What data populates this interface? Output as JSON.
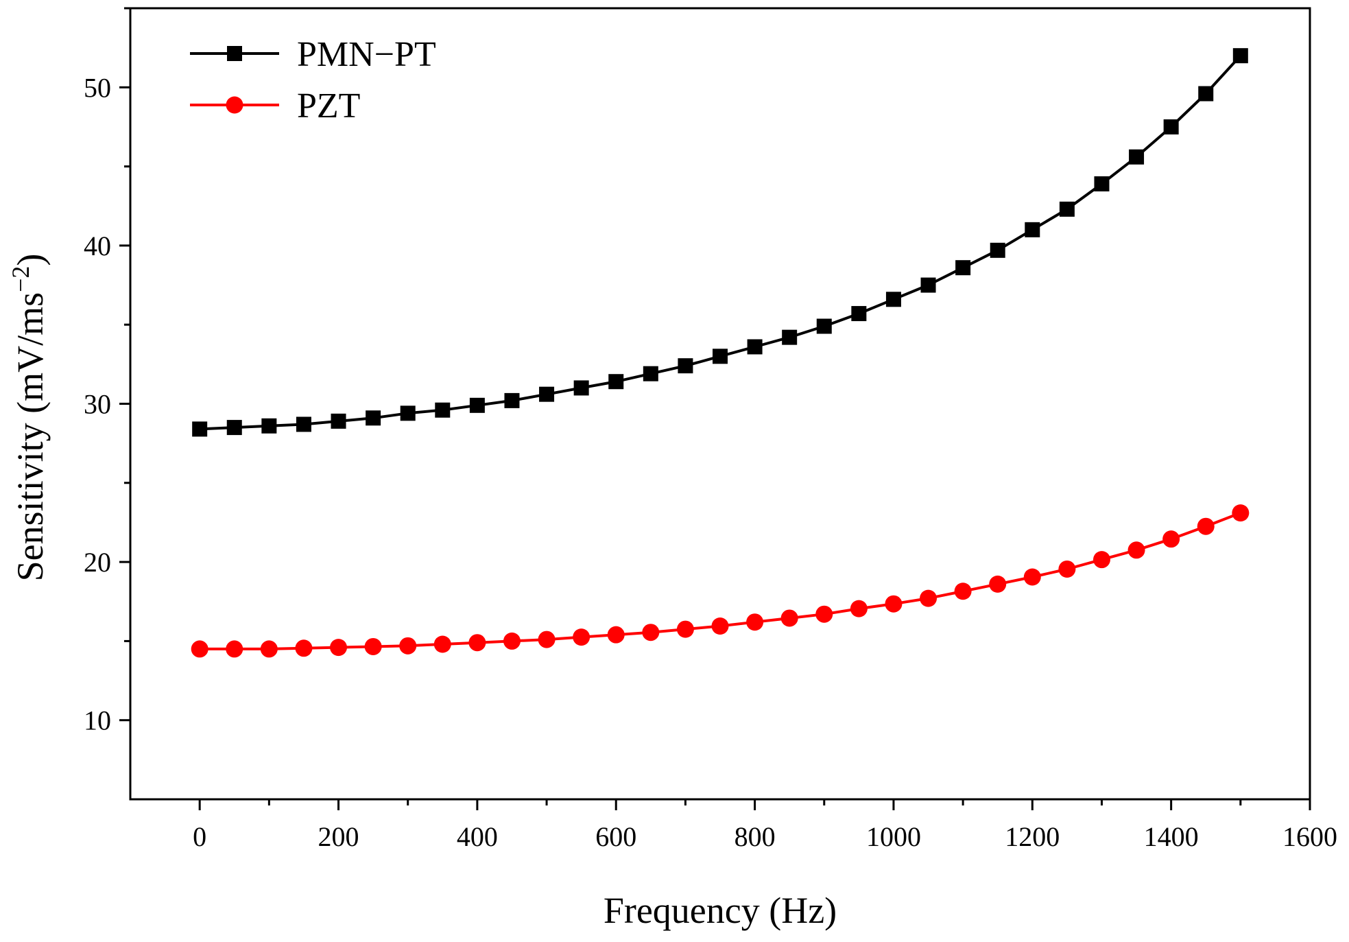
{
  "chart_data": {
    "type": "line",
    "title": "",
    "xlabel": "Frequency (Hz)",
    "ylabel": {
      "prefix": "Sensitivity (mV/ms",
      "superscript": "−2",
      "suffix": ")"
    },
    "xlim": [
      -100,
      1600
    ],
    "ylim": [
      5,
      55
    ],
    "x_ticks": [
      0,
      200,
      400,
      600,
      800,
      1000,
      1200,
      1400,
      1600
    ],
    "x_tick_labels": [
      "0",
      "200",
      "400",
      "600",
      "800",
      "1000",
      "1200",
      "1400",
      "1600"
    ],
    "y_ticks": [
      10,
      20,
      30,
      40,
      50
    ],
    "y_tick_labels": [
      "10",
      "20",
      "30",
      "40",
      "50"
    ],
    "x": [
      0,
      50,
      100,
      150,
      200,
      250,
      300,
      350,
      400,
      450,
      500,
      550,
      600,
      650,
      700,
      750,
      800,
      850,
      900,
      950,
      1000,
      1050,
      1100,
      1150,
      1200,
      1250,
      1300,
      1350,
      1400,
      1450,
      1500
    ],
    "series": [
      {
        "name": "PMN−PT",
        "color": "#000000",
        "marker": "square",
        "values": [
          28.4,
          28.5,
          28.6,
          28.7,
          28.9,
          29.1,
          29.4,
          29.6,
          29.9,
          30.2,
          30.6,
          31.0,
          31.4,
          31.9,
          32.4,
          33.0,
          33.6,
          34.2,
          34.9,
          35.7,
          36.6,
          37.5,
          38.6,
          39.7,
          41.0,
          42.3,
          43.9,
          45.6,
          47.5,
          49.6,
          52.0
        ]
      },
      {
        "name": "PZT",
        "color": "#ff0000",
        "marker": "circle",
        "values": [
          14.5,
          14.5,
          14.5,
          14.55,
          14.6,
          14.65,
          14.7,
          14.8,
          14.9,
          15.0,
          15.1,
          15.25,
          15.4,
          15.55,
          15.75,
          15.95,
          16.2,
          16.45,
          16.7,
          17.05,
          17.35,
          17.7,
          18.15,
          18.6,
          19.05,
          19.55,
          20.15,
          20.75,
          21.45,
          22.25,
          23.1
        ]
      }
    ],
    "legend_position": "top-left",
    "grid": false
  }
}
